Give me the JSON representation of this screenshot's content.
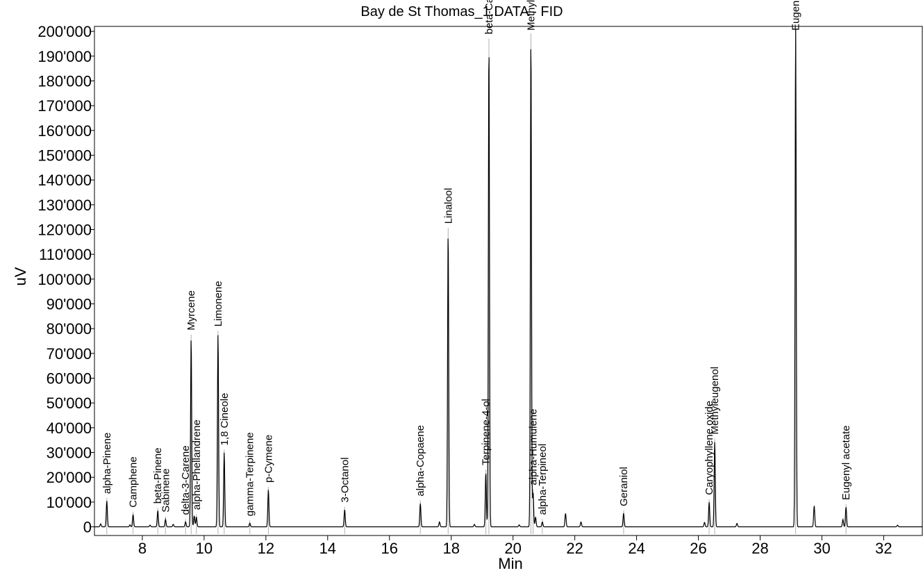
{
  "chart_data": {
    "type": "line",
    "title": "Bay de St Thomas_1.DATA - FID",
    "xlabel": "Min",
    "ylabel": "uV",
    "xlim": [
      6.45,
      33.25
    ],
    "ylim": [
      -3500,
      202000
    ],
    "xticks": [
      8,
      10,
      12,
      14,
      16,
      18,
      20,
      22,
      24,
      26,
      28,
      30,
      32
    ],
    "yticks": [
      0,
      10000,
      20000,
      30000,
      40000,
      50000,
      60000,
      70000,
      80000,
      90000,
      100000,
      110000,
      120000,
      130000,
      140000,
      150000,
      160000,
      170000,
      180000,
      190000,
      200000
    ],
    "ytick_labels": [
      "0",
      "10'000",
      "20'000",
      "30'000",
      "40'000",
      "50'000",
      "60'000",
      "70'000",
      "80'000",
      "90'000",
      "100'000",
      "110'000",
      "120'000",
      "130'000",
      "140'000",
      "150'000",
      "160'000",
      "170'000",
      "180'000",
      "190'000",
      "200'000"
    ],
    "grid": false,
    "legend": "none",
    "labeled_peaks": [
      {
        "name": "alpha-Pinene",
        "rt": 6.85,
        "height": 10500
      },
      {
        "name": "Camphene",
        "rt": 7.7,
        "height": 5000
      },
      {
        "name": "beta-Pinene",
        "rt": 8.5,
        "height": 6500
      },
      {
        "name": "Sabinene",
        "rt": 8.75,
        "height": 3000
      },
      {
        "name": "delta-3-Carene",
        "rt": 9.4,
        "height": 2000
      },
      {
        "name": "alpha-Phellandrene",
        "rt": 9.75,
        "height": 4000
      },
      {
        "name": "Myrcene",
        "rt": 9.58,
        "height": 76500
      },
      {
        "name": "Limonene",
        "rt": 10.45,
        "height": 78000
      },
      {
        "name": "1,8 Cineole",
        "rt": 10.65,
        "height": 30000
      },
      {
        "name": "gamma-Terpinene",
        "rt": 11.48,
        "height": 1500
      },
      {
        "name": "p-Cymene",
        "rt": 12.08,
        "height": 15000
      },
      {
        "name": "3-Octanol",
        "rt": 14.55,
        "height": 7000
      },
      {
        "name": "alpha-Copaene",
        "rt": 17.0,
        "height": 9500
      },
      {
        "name": "Linalool",
        "rt": 17.9,
        "height": 119500
      },
      {
        "name": "Terpinene-4-ol",
        "rt": 19.12,
        "height": 22000
      },
      {
        "name": "beta-Caryophyllene",
        "rt": 19.22,
        "height": 196000
      },
      {
        "name": "Methyl Chavicol",
        "rt": 20.58,
        "height": 198000
      },
      {
        "name": "alpha-Humulene",
        "rt": 20.65,
        "height": 14000
      },
      {
        "name": "alpha-Terpineol",
        "rt": 20.95,
        "height": 2000
      },
      {
        "name": "Geraniol",
        "rt": 23.58,
        "height": 5500
      },
      {
        "name": "Caryophyllene oxide",
        "rt": 26.35,
        "height": 10000
      },
      {
        "name": "Methyleugenol",
        "rt": 26.53,
        "height": 34500
      },
      {
        "name": "Eugenol",
        "rt": 29.15,
        "height": 202000
      },
      {
        "name": "Eugenyl acetate",
        "rt": 30.78,
        "height": 8000
      }
    ],
    "unlabeled_peaks": [
      {
        "rt": 6.65,
        "height": 1200
      },
      {
        "rt": 7.6,
        "height": 800
      },
      {
        "rt": 8.25,
        "height": 700
      },
      {
        "rt": 9.0,
        "height": 1000
      },
      {
        "rt": 9.68,
        "height": 4500
      },
      {
        "rt": 17.62,
        "height": 2000
      },
      {
        "rt": 18.75,
        "height": 1000
      },
      {
        "rt": 20.2,
        "height": 800
      },
      {
        "rt": 20.73,
        "height": 4000
      },
      {
        "rt": 21.7,
        "height": 5500
      },
      {
        "rt": 22.2,
        "height": 2000
      },
      {
        "rt": 26.2,
        "height": 1800
      },
      {
        "rt": 27.25,
        "height": 1400
      },
      {
        "rt": 29.75,
        "height": 8500
      },
      {
        "rt": 30.68,
        "height": 3000
      },
      {
        "rt": 32.45,
        "height": 700
      }
    ]
  }
}
